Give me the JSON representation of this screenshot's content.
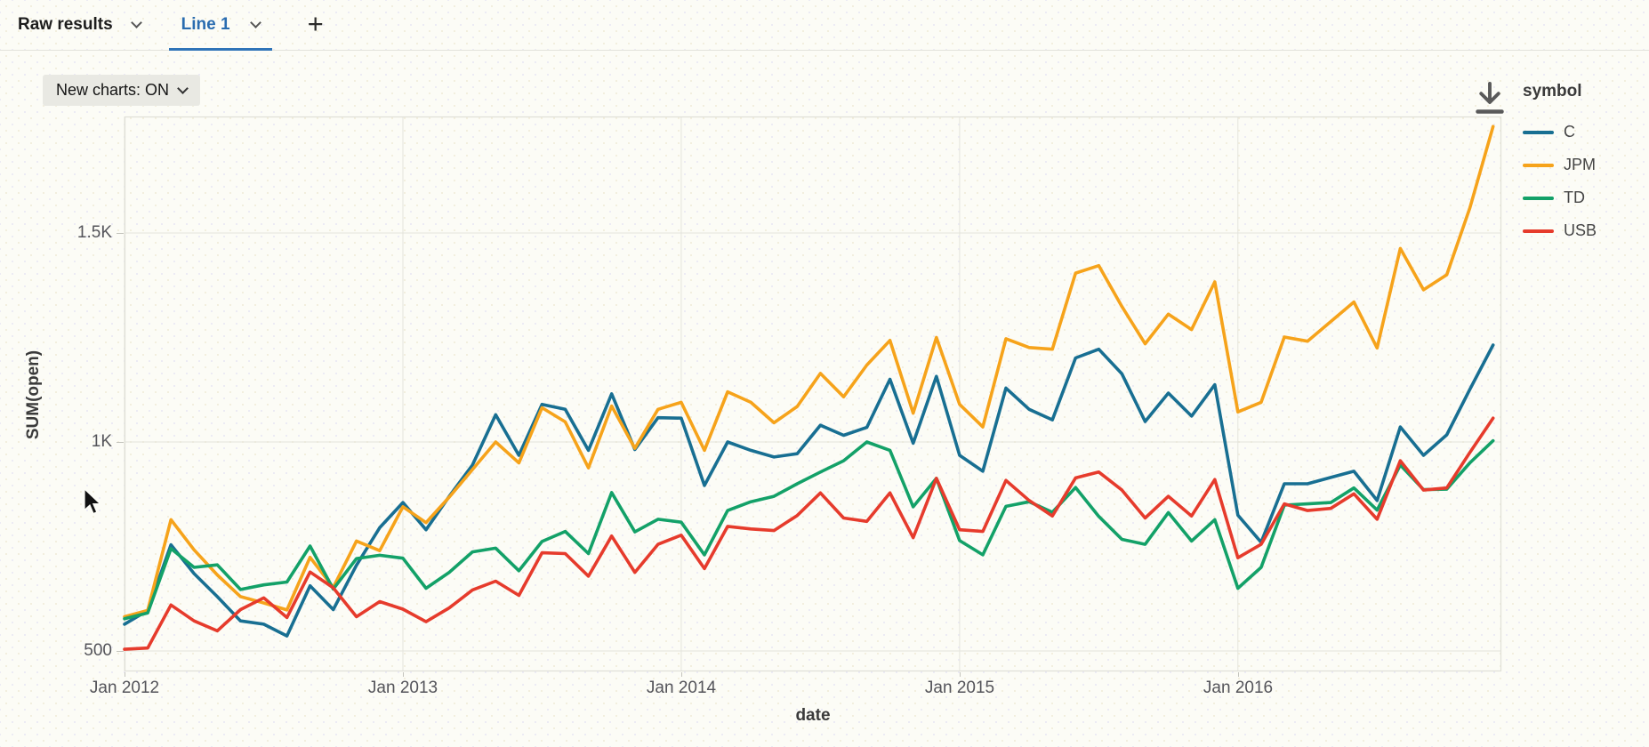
{
  "tab_bar": {
    "tabs": [
      {
        "label": "Raw results",
        "active": false
      },
      {
        "label": "Line 1",
        "active": true
      }
    ],
    "add_tab_label": "+",
    "accent_color": "#2a6cb0"
  },
  "controls": {
    "new_charts_label": "New charts: ON"
  },
  "icons": {
    "download": "download-icon",
    "chevron": "chevron-down-icon",
    "plus": "plus-icon",
    "cursor": "mouse-cursor-arrow"
  },
  "legend": {
    "title": "symbol"
  },
  "chart_data": {
    "type": "line",
    "title": "",
    "xlabel": "date",
    "ylabel": "SUM(open)",
    "x_range": "Jan 2012 to Dec 2016, monthly points (60 per series)",
    "x_tick_labels": [
      "Jan 2012",
      "Jan 2013",
      "Jan 2014",
      "Jan 2015",
      "Jan 2016"
    ],
    "y_tick_labels": [
      "500",
      "1K",
      "1.5K"
    ],
    "y_ticks": [
      500,
      1000,
      1500
    ],
    "ylim": [
      450,
      1780
    ],
    "grid": "light vertical year lines and horizontal lines at 500/1K/1.5K",
    "legend_position": "top-right outside plot",
    "series": [
      {
        "name": "C",
        "color": "#186f92",
        "values": [
          564,
          597,
          754,
          685,
          630,
          572,
          564,
          536,
          656,
          599,
          705,
          795,
          855,
          790,
          870,
          945,
          1065,
          968,
          1090,
          1078,
          980,
          1115,
          982,
          1058,
          1057,
          896,
          1000,
          980,
          964,
          972,
          1040,
          1016,
          1035,
          1150,
          997,
          1157,
          968,
          930,
          1129,
          1078,
          1053,
          1201,
          1222,
          1163,
          1049,
          1117,
          1062,
          1137,
          825,
          760,
          900,
          900,
          915,
          930,
          860,
          1036,
          968,
          1017,
          1126,
          1232
        ]
      },
      {
        "name": "JPM",
        "color": "#f6a31b",
        "values": [
          582,
          597,
          814,
          742,
          682,
          630,
          615,
          598,
          724,
          652,
          763,
          740,
          845,
          807,
          868,
          934,
          1000,
          950,
          1082,
          1048,
          938,
          1086,
          985,
          1078,
          1095,
          980,
          1120,
          1095,
          1046,
          1085,
          1164,
          1108,
          1184,
          1243,
          1069,
          1250,
          1090,
          1036,
          1247,
          1226,
          1222,
          1404,
          1422,
          1324,
          1235,
          1306,
          1269,
          1383,
          1072,
          1095,
          1251,
          1241,
          1288,
          1335,
          1225,
          1463,
          1364,
          1400,
          1560,
          1755
        ]
      },
      {
        "name": "TD",
        "color": "#13a168",
        "values": [
          577,
          591,
          745,
          700,
          706,
          647,
          658,
          665,
          751,
          648,
          721,
          729,
          722,
          650,
          688,
          737,
          746,
          692,
          762,
          786,
          733,
          879,
          785,
          815,
          808,
          730,
          836,
          857,
          870,
          900,
          928,
          955,
          1000,
          980,
          845,
          913,
          764,
          730,
          846,
          857,
          832,
          891,
          822,
          767,
          755,
          831,
          763,
          814,
          650,
          700,
          849,
          852,
          855,
          890,
          837,
          945,
          886,
          887,
          950,
          1003
        ]
      },
      {
        "name": "USB",
        "color": "#e63b2c",
        "values": [
          504,
          507,
          610,
          572,
          548,
          599,
          627,
          580,
          689,
          651,
          582,
          618,
          600,
          570,
          603,
          646,
          667,
          633,
          735,
          733,
          679,
          775,
          688,
          755,
          777,
          697,
          798,
          792,
          788,
          824,
          878,
          818,
          810,
          878,
          771,
          913,
          790,
          786,
          908,
          860,
          823,
          914,
          928,
          885,
          818,
          870,
          823,
          910,
          723,
          755,
          852,
          836,
          841,
          876,
          815,
          955,
          885,
          890,
          975,
          1057
        ]
      }
    ]
  }
}
